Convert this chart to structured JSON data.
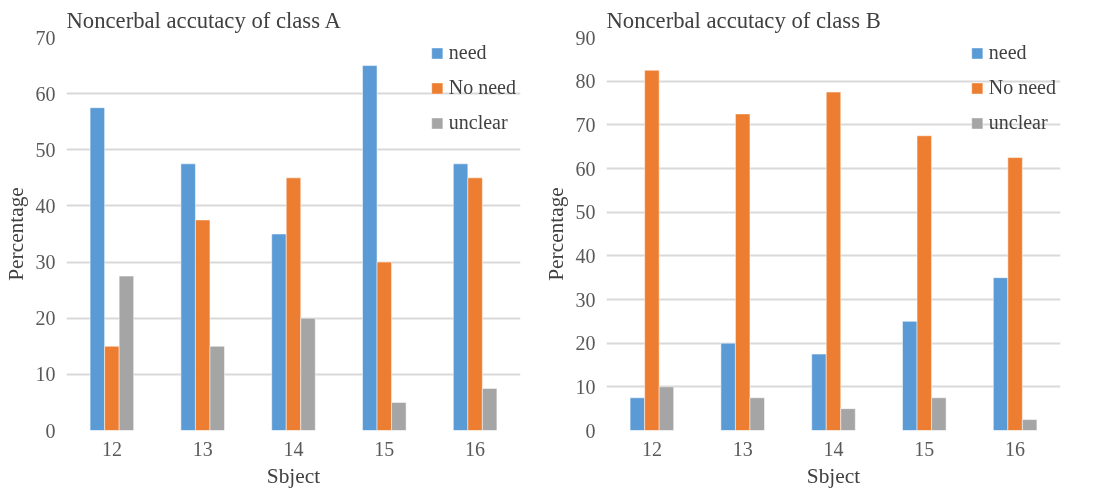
{
  "chart_data": [
    {
      "type": "bar",
      "title": "Noncerbal accutacy of class A",
      "xlabel": "Sbject",
      "ylabel": "Percentage",
      "categories": [
        "12",
        "13",
        "14",
        "15",
        "16"
      ],
      "ylim": [
        0,
        70
      ],
      "yticks": [
        0,
        10,
        20,
        30,
        40,
        50,
        60,
        70
      ],
      "grid": "y",
      "legend": "top right",
      "series": [
        {
          "name": "need",
          "color": "#5b9bd5",
          "values": [
            57.5,
            47.5,
            35,
            65,
            47.5
          ]
        },
        {
          "name": "No need",
          "color": "#ed7d31",
          "values": [
            15,
            37.5,
            45,
            30,
            45
          ]
        },
        {
          "name": "unclear",
          "color": "#a5a5a5",
          "values": [
            27.5,
            15,
            20,
            5,
            7.5
          ]
        }
      ]
    },
    {
      "type": "bar",
      "title": "Noncerbal accutacy of class B",
      "xlabel": "Sbject",
      "ylabel": "Percentage",
      "categories": [
        "12",
        "13",
        "14",
        "15",
        "16"
      ],
      "ylim": [
        0,
        90
      ],
      "yticks": [
        0,
        10,
        20,
        30,
        40,
        50,
        60,
        70,
        80,
        90
      ],
      "grid": "y",
      "legend": "top right",
      "series": [
        {
          "name": "need",
          "color": "#5b9bd5",
          "values": [
            7.5,
            20,
            17.5,
            25,
            35
          ]
        },
        {
          "name": "No need",
          "color": "#ed7d31",
          "values": [
            82.5,
            72.5,
            77.5,
            67.5,
            62.5
          ]
        },
        {
          "name": "unclear",
          "color": "#a5a5a5",
          "values": [
            10,
            7.5,
            5,
            7.5,
            2.5
          ]
        }
      ]
    }
  ]
}
